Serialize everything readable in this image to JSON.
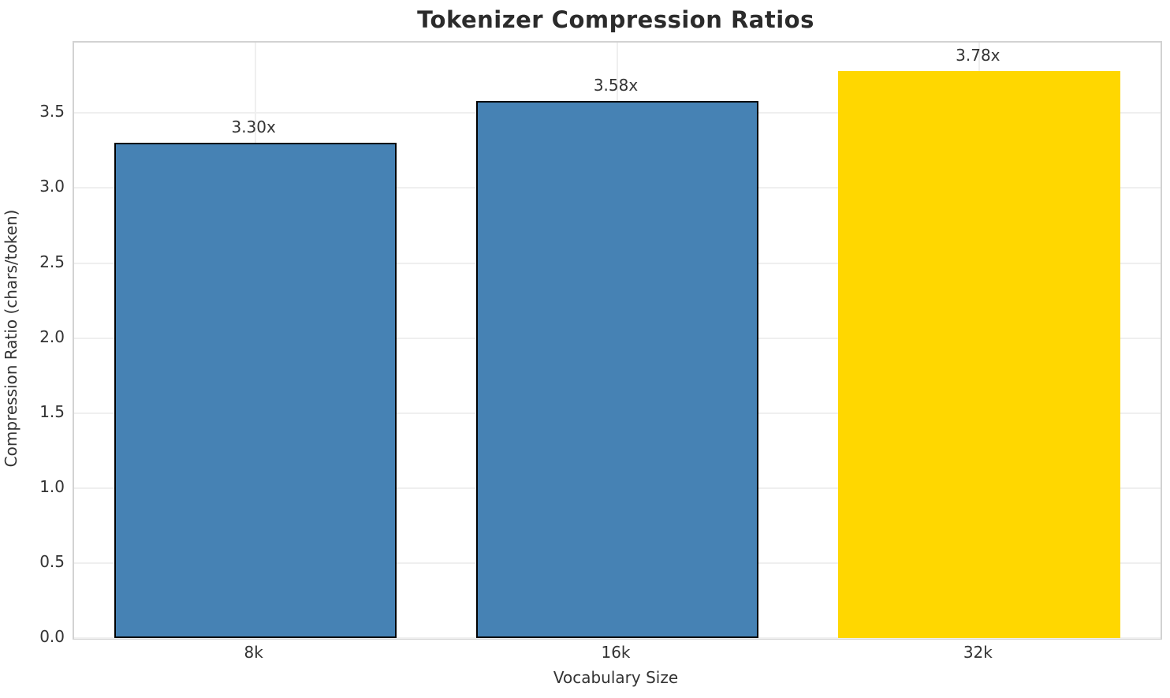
{
  "chart_data": {
    "type": "bar",
    "title": "Tokenizer Compression Ratios",
    "xlabel": "Vocabulary Size",
    "ylabel": "Compression Ratio (chars/token)",
    "categories": [
      "8k",
      "16k",
      "32k"
    ],
    "values": [
      3.3,
      3.58,
      3.78
    ],
    "bar_labels": [
      "3.30x",
      "3.58x",
      "3.78x"
    ],
    "bar_colors": [
      "#4682B4",
      "#4682B4",
      "#FFD700"
    ],
    "bar_edge_colors": [
      "#000000",
      "#000000",
      "#FFD700"
    ],
    "ylim": [
      0,
      3.97
    ],
    "yticks": [
      0.0,
      0.5,
      1.0,
      1.5,
      2.0,
      2.5,
      3.0,
      3.5
    ],
    "ytick_labels": [
      "0.0",
      "0.5",
      "1.0",
      "1.5",
      "2.0",
      "2.5",
      "3.0",
      "3.5"
    ],
    "grid": true,
    "legend_position": "none"
  },
  "colors": {
    "accent_blue": "#4682B4",
    "accent_gold": "#FFD700",
    "grid": "#efefef",
    "spine": "#d2d2d2",
    "tick_text": "#333333",
    "title_text": "#2b2b2b"
  }
}
